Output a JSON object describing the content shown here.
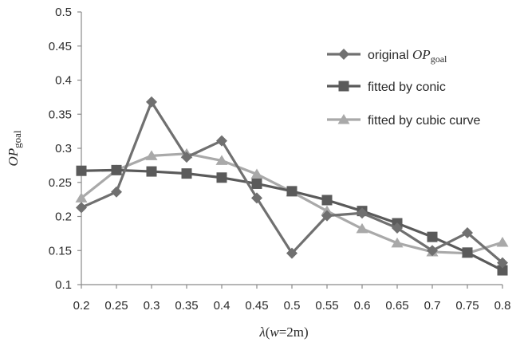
{
  "chart_data": {
    "type": "line",
    "title": "",
    "xlabel": {
      "lambda": "λ",
      "open": "(",
      "w": "w",
      "rest": "=2m)"
    },
    "ylabel": {
      "main": "OP",
      "sub": "goal"
    },
    "x": [
      0.2,
      0.25,
      0.3,
      0.35,
      0.4,
      0.45,
      0.5,
      0.55,
      0.6,
      0.65,
      0.7,
      0.75,
      0.8
    ],
    "x_tick_labels": [
      "0.2",
      "0.25",
      "0.3",
      "0.35",
      "0.4",
      "0.45",
      "0.5",
      "0.55",
      "0.6",
      "0.65",
      "0.7",
      "0.75",
      "0.8"
    ],
    "y_tick_labels": [
      "0.1",
      "0.15",
      "0.2",
      "0.25",
      "0.3",
      "0.35",
      "0.4",
      "0.45",
      "0.5"
    ],
    "ylim": [
      0.1,
      0.5
    ],
    "y_ticks": [
      0.1,
      0.15,
      0.2,
      0.25,
      0.3,
      0.35,
      0.4,
      0.45,
      0.5
    ],
    "grid": false,
    "legend_position": "top-right",
    "series": [
      {
        "name": "original OPgoal",
        "legend_text": "original ",
        "legend_math": "OP",
        "legend_sub": "goal",
        "marker": "diamond",
        "color": "#707070",
        "values": [
          0.213,
          0.236,
          0.368,
          0.287,
          0.311,
          0.227,
          0.146,
          0.201,
          0.205,
          0.183,
          0.15,
          0.176,
          0.132
        ]
      },
      {
        "name": "fitted by conic",
        "legend_text": "fitted  by  conic",
        "marker": "square",
        "color": "#5a5a5a",
        "values": [
          0.267,
          0.268,
          0.266,
          0.263,
          0.257,
          0.248,
          0.237,
          0.224,
          0.208,
          0.19,
          0.17,
          0.147,
          0.121
        ]
      },
      {
        "name": "fitted by cubic curve",
        "legend_text": "fitted  by  cubic  curve",
        "marker": "triangle",
        "color": "#a9a9a9",
        "values": [
          0.227,
          0.268,
          0.289,
          0.292,
          0.282,
          0.262,
          0.236,
          0.208,
          0.182,
          0.161,
          0.148,
          0.146,
          0.162
        ]
      }
    ]
  }
}
